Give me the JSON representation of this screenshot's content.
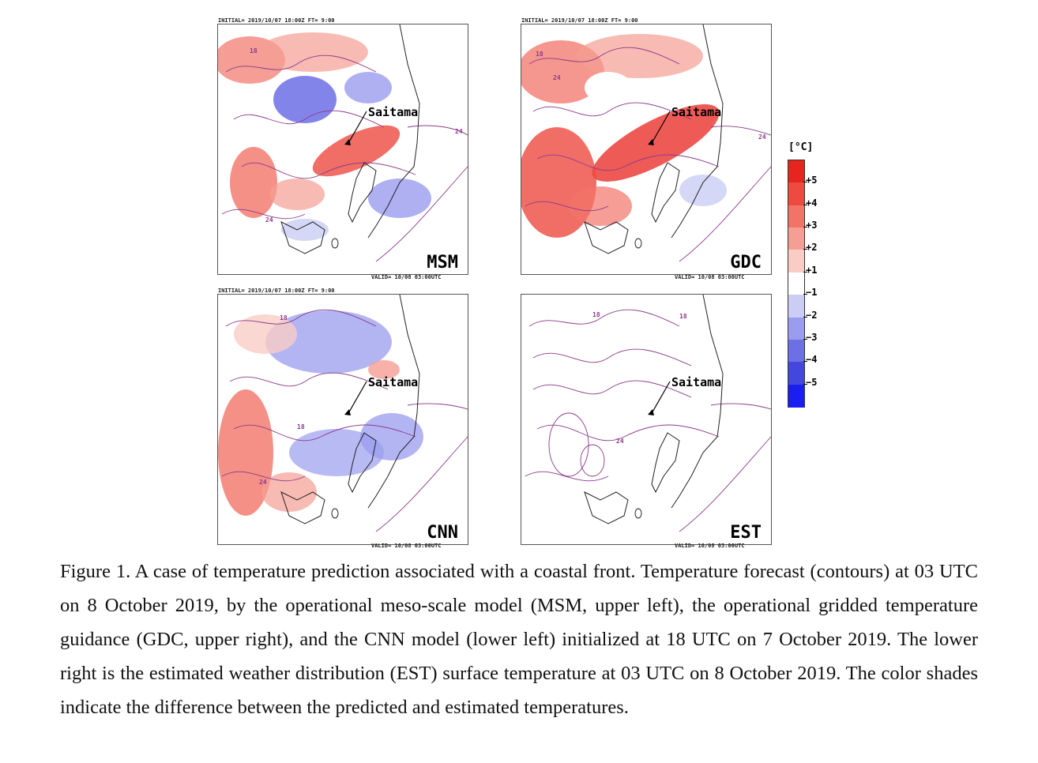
{
  "panels": {
    "msm": {
      "label": "MSM",
      "city": "Saitama",
      "initial": "INITIAL= 2019/10/07 18:00Z FT= 9:00",
      "valid": "VALID= 10/08 03:00UTC"
    },
    "gdc": {
      "label": "GDC",
      "city": "Saitama",
      "initial": "INITIAL= 2019/10/07 18:00Z FT= 9:00",
      "valid": "VALID= 10/08 03:00UTC"
    },
    "cnn": {
      "label": "CNN",
      "city": "Saitama",
      "initial": "INITIAL= 2019/10/07 18:00Z FT= 9:00",
      "valid": "VALID= 10/08 03:00UTC"
    },
    "est": {
      "label": "EST",
      "city": "Saitama",
      "valid": "VALID= 10/08 03:00UTC"
    }
  },
  "contour_labels": [
    "18",
    "24"
  ],
  "colorbar": {
    "unit": "[°C]",
    "ticks": [
      "+5",
      "+4",
      "+3",
      "+2",
      "+1",
      "−1",
      "−2",
      "−3",
      "−4",
      "−5"
    ],
    "colors": [
      "#e8241f",
      "#ee4a40",
      "#f27468",
      "#f59e93",
      "#f9cdc6",
      "#ffffff",
      "#cbcdf5",
      "#9a9cef",
      "#6d6fe6",
      "#4447dd",
      "#1a1ef0"
    ]
  },
  "caption": "Figure 1. A case of temperature prediction associated with a coastal front. Temperature forecast (contours) at 03 UTC on 8 October 2019, by the operational meso-scale model (MSM, upper left), the operational gridded temperature guidance (GDC, upper right), and the CNN model (lower left) initialized at 18 UTC on 7 October 2019. The lower right is the estimated weather distribution (EST) surface temperature at 03 UTC on 8 October 2019. The color shades indicate the difference between the predicted and estimated temperatures."
}
